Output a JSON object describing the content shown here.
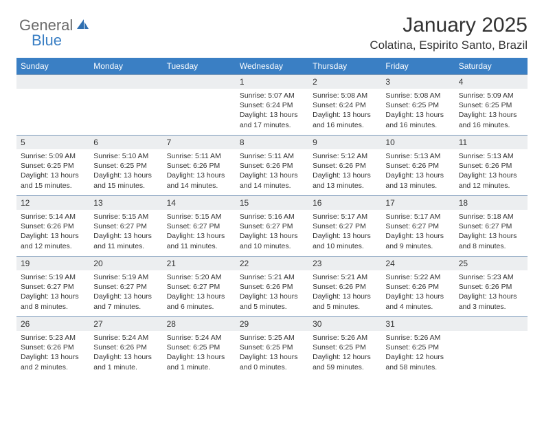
{
  "logo": {
    "part1": "General",
    "part2": "Blue"
  },
  "title": "January 2025",
  "subtitle": "Colatina, Espirito Santo, Brazil",
  "colors": {
    "header_bg": "#3a7fc4",
    "date_bg": "#eceef0",
    "border": "#7a98b8",
    "text": "#333333",
    "logo_gray": "#6a6a6a",
    "logo_blue": "#3a7fc4"
  },
  "day_names": [
    "Sunday",
    "Monday",
    "Tuesday",
    "Wednesday",
    "Thursday",
    "Friday",
    "Saturday"
  ],
  "weeks": [
    [
      null,
      null,
      null,
      {
        "n": "1",
        "sr": "5:07 AM",
        "ss": "6:24 PM",
        "dl": "13 hours and 17 minutes."
      },
      {
        "n": "2",
        "sr": "5:08 AM",
        "ss": "6:24 PM",
        "dl": "13 hours and 16 minutes."
      },
      {
        "n": "3",
        "sr": "5:08 AM",
        "ss": "6:25 PM",
        "dl": "13 hours and 16 minutes."
      },
      {
        "n": "4",
        "sr": "5:09 AM",
        "ss": "6:25 PM",
        "dl": "13 hours and 16 minutes."
      }
    ],
    [
      {
        "n": "5",
        "sr": "5:09 AM",
        "ss": "6:25 PM",
        "dl": "13 hours and 15 minutes."
      },
      {
        "n": "6",
        "sr": "5:10 AM",
        "ss": "6:25 PM",
        "dl": "13 hours and 15 minutes."
      },
      {
        "n": "7",
        "sr": "5:11 AM",
        "ss": "6:26 PM",
        "dl": "13 hours and 14 minutes."
      },
      {
        "n": "8",
        "sr": "5:11 AM",
        "ss": "6:26 PM",
        "dl": "13 hours and 14 minutes."
      },
      {
        "n": "9",
        "sr": "5:12 AM",
        "ss": "6:26 PM",
        "dl": "13 hours and 13 minutes."
      },
      {
        "n": "10",
        "sr": "5:13 AM",
        "ss": "6:26 PM",
        "dl": "13 hours and 13 minutes."
      },
      {
        "n": "11",
        "sr": "5:13 AM",
        "ss": "6:26 PM",
        "dl": "13 hours and 12 minutes."
      }
    ],
    [
      {
        "n": "12",
        "sr": "5:14 AM",
        "ss": "6:26 PM",
        "dl": "13 hours and 12 minutes."
      },
      {
        "n": "13",
        "sr": "5:15 AM",
        "ss": "6:27 PM",
        "dl": "13 hours and 11 minutes."
      },
      {
        "n": "14",
        "sr": "5:15 AM",
        "ss": "6:27 PM",
        "dl": "13 hours and 11 minutes."
      },
      {
        "n": "15",
        "sr": "5:16 AM",
        "ss": "6:27 PM",
        "dl": "13 hours and 10 minutes."
      },
      {
        "n": "16",
        "sr": "5:17 AM",
        "ss": "6:27 PM",
        "dl": "13 hours and 10 minutes."
      },
      {
        "n": "17",
        "sr": "5:17 AM",
        "ss": "6:27 PM",
        "dl": "13 hours and 9 minutes."
      },
      {
        "n": "18",
        "sr": "5:18 AM",
        "ss": "6:27 PM",
        "dl": "13 hours and 8 minutes."
      }
    ],
    [
      {
        "n": "19",
        "sr": "5:19 AM",
        "ss": "6:27 PM",
        "dl": "13 hours and 8 minutes."
      },
      {
        "n": "20",
        "sr": "5:19 AM",
        "ss": "6:27 PM",
        "dl": "13 hours and 7 minutes."
      },
      {
        "n": "21",
        "sr": "5:20 AM",
        "ss": "6:27 PM",
        "dl": "13 hours and 6 minutes."
      },
      {
        "n": "22",
        "sr": "5:21 AM",
        "ss": "6:26 PM",
        "dl": "13 hours and 5 minutes."
      },
      {
        "n": "23",
        "sr": "5:21 AM",
        "ss": "6:26 PM",
        "dl": "13 hours and 5 minutes."
      },
      {
        "n": "24",
        "sr": "5:22 AM",
        "ss": "6:26 PM",
        "dl": "13 hours and 4 minutes."
      },
      {
        "n": "25",
        "sr": "5:23 AM",
        "ss": "6:26 PM",
        "dl": "13 hours and 3 minutes."
      }
    ],
    [
      {
        "n": "26",
        "sr": "5:23 AM",
        "ss": "6:26 PM",
        "dl": "13 hours and 2 minutes."
      },
      {
        "n": "27",
        "sr": "5:24 AM",
        "ss": "6:26 PM",
        "dl": "13 hours and 1 minute."
      },
      {
        "n": "28",
        "sr": "5:24 AM",
        "ss": "6:25 PM",
        "dl": "13 hours and 1 minute."
      },
      {
        "n": "29",
        "sr": "5:25 AM",
        "ss": "6:25 PM",
        "dl": "13 hours and 0 minutes."
      },
      {
        "n": "30",
        "sr": "5:26 AM",
        "ss": "6:25 PM",
        "dl": "12 hours and 59 minutes."
      },
      {
        "n": "31",
        "sr": "5:26 AM",
        "ss": "6:25 PM",
        "dl": "12 hours and 58 minutes."
      },
      null
    ]
  ],
  "labels": {
    "sunrise": "Sunrise: ",
    "sunset": "Sunset: ",
    "daylight": "Daylight: "
  }
}
